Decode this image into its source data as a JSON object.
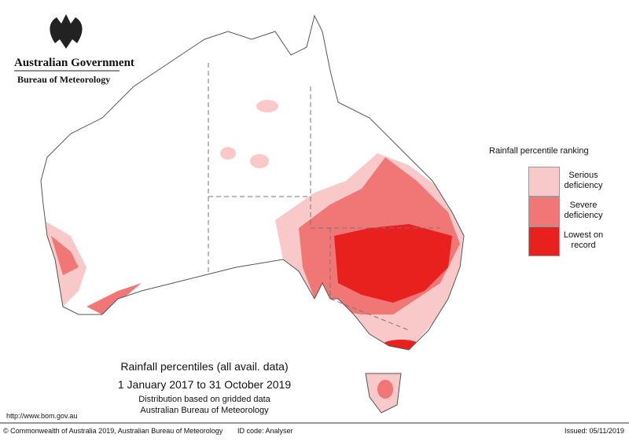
{
  "header": {
    "title": "Australian Government",
    "subtitle": "Bureau of Meteorology"
  },
  "legend": {
    "title": "Rainfall percentile ranking",
    "items": [
      {
        "label": "Serious deficiency",
        "color": "#f9c9c9"
      },
      {
        "label": "Severe deficiency",
        "color": "#f17676"
      },
      {
        "label": "Lowest on record",
        "color": "#e8211f"
      }
    ]
  },
  "caption": {
    "title": "Rainfall percentiles (all avail. data)",
    "period": "1 January 2017 to 31 October 2019",
    "note1": "Distribution based on gridded data",
    "note2": "Australian Bureau of Meteorology"
  },
  "url": "http://www.bom.gov.au",
  "footer": {
    "copyright": "© Commonwealth of Australia 2019, Australian Bureau of Meteorology",
    "id_code": "ID code: Analyser",
    "issued": "Issued: 05/11/2019"
  }
}
